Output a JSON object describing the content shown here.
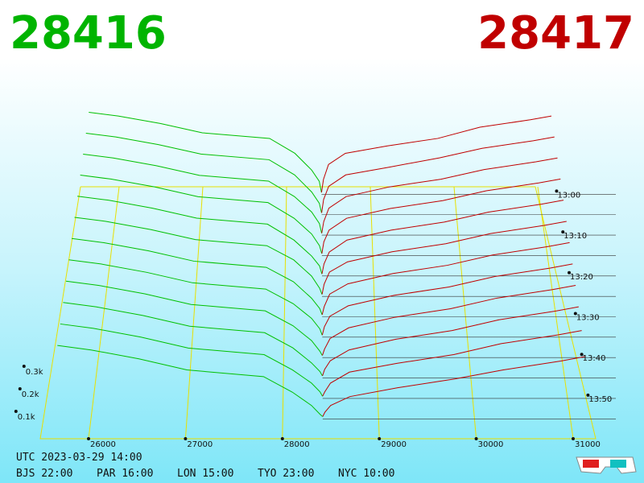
{
  "header": {
    "bid_price": "28416",
    "ask_price": "28417"
  },
  "chart_data": {
    "type": "depth3d",
    "bid_color": "#00c000",
    "ask_color": "#c00000",
    "xticks": [
      26000,
      27000,
      28000,
      29000,
      30000,
      31000
    ],
    "zticks": [
      {
        "value": 0.1,
        "label": "0.1k"
      },
      {
        "value": 0.2,
        "label": "0.2k"
      },
      {
        "value": 0.3,
        "label": "0.3k"
      }
    ],
    "time_labels": [
      "13:00",
      "13:10",
      "13:20",
      "13:30",
      "13:40",
      "13:50"
    ],
    "bid_prices": [
      28416,
      28390,
      28300,
      28100,
      27800,
      27000,
      26500,
      26000,
      25650
    ],
    "ask_prices": [
      28417,
      28440,
      28500,
      28700,
      29200,
      29800,
      30300,
      30900,
      31150
    ],
    "snapshots": [
      {
        "bid": [
          0.01,
          0.07,
          0.13,
          0.22,
          0.3,
          0.33,
          0.38,
          0.42,
          0.44
        ],
        "ask": [
          0.01,
          0.08,
          0.16,
          0.22,
          0.26,
          0.3,
          0.36,
          0.4,
          0.42
        ]
      },
      {
        "bid": [
          0.01,
          0.06,
          0.12,
          0.21,
          0.29,
          0.32,
          0.37,
          0.41,
          0.43
        ],
        "ask": [
          0.01,
          0.08,
          0.15,
          0.21,
          0.25,
          0.3,
          0.35,
          0.39,
          0.41
        ]
      },
      {
        "bid": [
          0.01,
          0.06,
          0.12,
          0.2,
          0.28,
          0.31,
          0.36,
          0.4,
          0.42
        ],
        "ask": [
          0.01,
          0.07,
          0.14,
          0.2,
          0.25,
          0.29,
          0.34,
          0.38,
          0.4
        ]
      },
      {
        "bid": [
          0.01,
          0.05,
          0.11,
          0.19,
          0.27,
          0.3,
          0.35,
          0.39,
          0.41
        ],
        "ask": [
          0.01,
          0.07,
          0.13,
          0.19,
          0.24,
          0.28,
          0.33,
          0.37,
          0.39
        ]
      },
      {
        "bid": [
          0.01,
          0.05,
          0.1,
          0.18,
          0.26,
          0.29,
          0.34,
          0.38,
          0.4
        ],
        "ask": [
          0.01,
          0.06,
          0.12,
          0.18,
          0.23,
          0.27,
          0.32,
          0.36,
          0.38
        ]
      },
      {
        "bid": [
          0.01,
          0.04,
          0.1,
          0.18,
          0.25,
          0.28,
          0.33,
          0.37,
          0.39
        ],
        "ask": [
          0.01,
          0.06,
          0.12,
          0.17,
          0.22,
          0.26,
          0.31,
          0.35,
          0.37
        ]
      },
      {
        "bid": [
          0.01,
          0.04,
          0.09,
          0.17,
          0.24,
          0.27,
          0.32,
          0.36,
          0.38
        ],
        "ask": [
          0.01,
          0.05,
          0.11,
          0.16,
          0.21,
          0.25,
          0.3,
          0.34,
          0.36
        ]
      },
      {
        "bid": [
          0.01,
          0.04,
          0.09,
          0.16,
          0.23,
          0.26,
          0.31,
          0.35,
          0.37
        ],
        "ask": [
          0.01,
          0.05,
          0.1,
          0.15,
          0.2,
          0.24,
          0.29,
          0.33,
          0.35
        ]
      },
      {
        "bid": [
          0.01,
          0.03,
          0.08,
          0.15,
          0.22,
          0.25,
          0.3,
          0.34,
          0.36
        ],
        "ask": [
          0.01,
          0.04,
          0.09,
          0.14,
          0.19,
          0.23,
          0.28,
          0.32,
          0.34
        ]
      },
      {
        "bid": [
          0.01,
          0.03,
          0.07,
          0.14,
          0.21,
          0.24,
          0.29,
          0.33,
          0.35
        ],
        "ask": [
          0.01,
          0.04,
          0.08,
          0.13,
          0.18,
          0.22,
          0.27,
          0.31,
          0.33
        ]
      },
      {
        "bid": [
          0.01,
          0.03,
          0.07,
          0.13,
          0.2,
          0.23,
          0.28,
          0.32,
          0.34
        ],
        "ask": [
          0.01,
          0.03,
          0.07,
          0.12,
          0.16,
          0.2,
          0.25,
          0.29,
          0.31
        ]
      },
      {
        "bid": [
          0.01,
          0.02,
          0.06,
          0.12,
          0.19,
          0.22,
          0.27,
          0.31,
          0.33
        ],
        "ask": [
          0.01,
          0.03,
          0.06,
          0.1,
          0.14,
          0.18,
          0.22,
          0.26,
          0.28
        ]
      }
    ]
  },
  "footer": {
    "utc": "UTC 2023-03-29 14:00",
    "cities": [
      "BJS 22:00",
      "PAR 16:00",
      "LON 15:00",
      "TYO 23:00",
      "NYC 10:00"
    ]
  }
}
